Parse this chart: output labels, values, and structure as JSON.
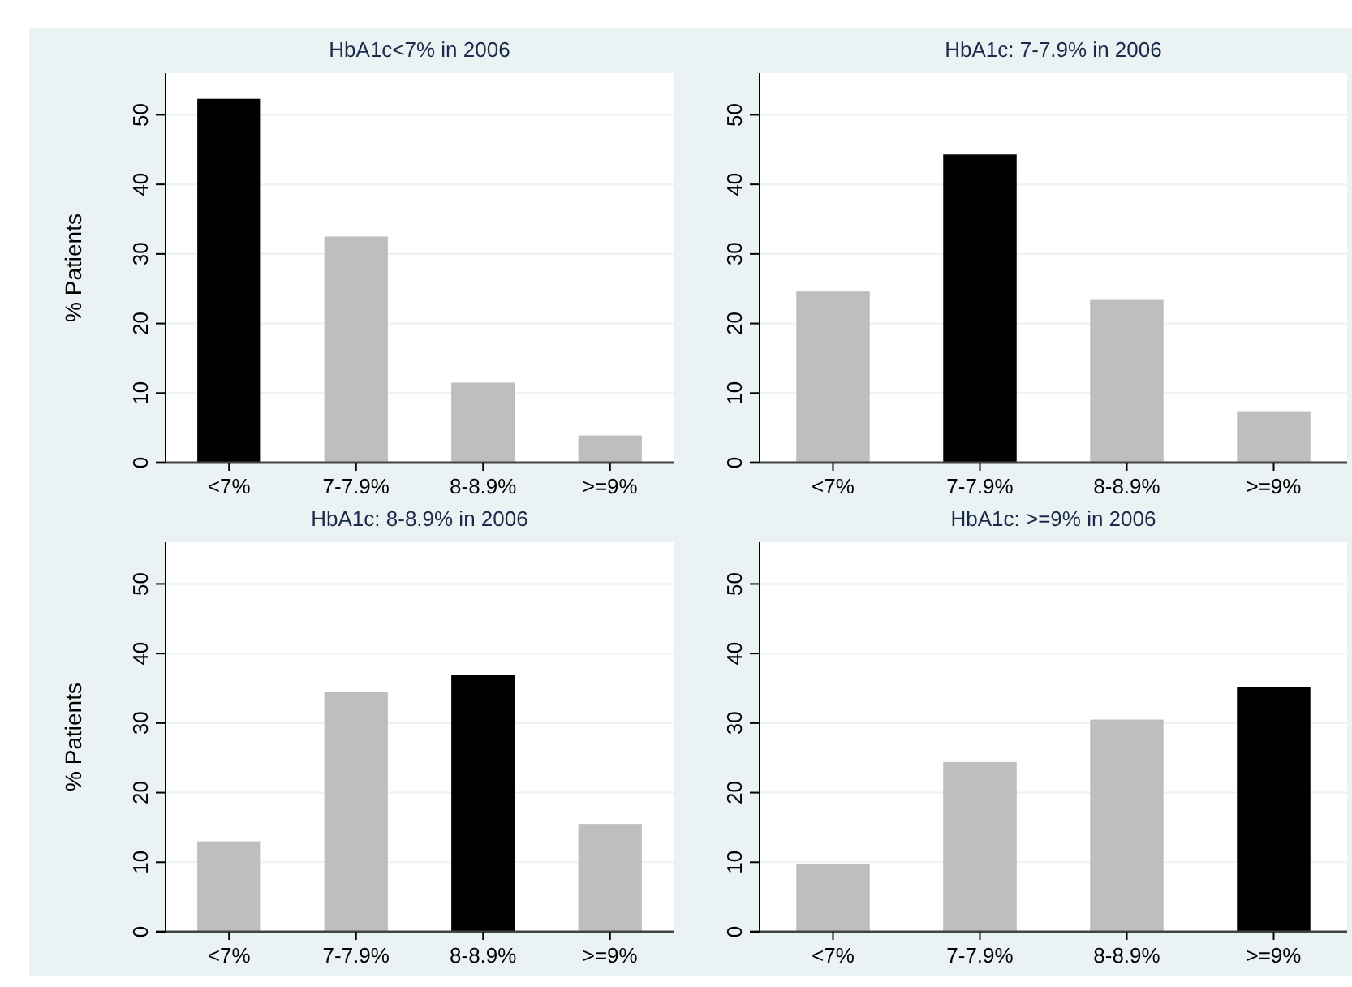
{
  "chart_data": [
    {
      "type": "bar",
      "title": "HbA1c<7% in 2006",
      "ylabel": "% Patients",
      "categories": [
        "<7%",
        "7-7.9%",
        "8-8.9%",
        ">=9%"
      ],
      "values": [
        52.3,
        32.5,
        11.5,
        3.9
      ],
      "colors": [
        "#000000",
        "#bebebe",
        "#bebebe",
        "#bebebe"
      ],
      "ylim": [
        0,
        56
      ],
      "yticks": [
        0,
        10,
        20,
        30,
        40,
        50
      ],
      "grid": "y"
    },
    {
      "type": "bar",
      "title": "HbA1c: 7-7.9% in 2006",
      "categories": [
        "<7%",
        "7-7.9%",
        "8-8.9%",
        ">=9%"
      ],
      "values": [
        24.6,
        44.3,
        23.5,
        7.4
      ],
      "colors": [
        "#bebebe",
        "#000000",
        "#bebebe",
        "#bebebe"
      ],
      "ylim": [
        0,
        56
      ],
      "yticks": [
        0,
        10,
        20,
        30,
        40,
        50
      ],
      "grid": "y"
    },
    {
      "type": "bar",
      "title": "HbA1c: 8-8.9% in 2006",
      "ylabel": "% Patients",
      "categories": [
        "<7%",
        "7-7.9%",
        "8-8.9%",
        ">=9%"
      ],
      "values": [
        13.0,
        34.5,
        36.9,
        15.5
      ],
      "colors": [
        "#bebebe",
        "#bebebe",
        "#000000",
        "#bebebe"
      ],
      "ylim": [
        0,
        56
      ],
      "yticks": [
        0,
        10,
        20,
        30,
        40,
        50
      ],
      "grid": "y"
    },
    {
      "type": "bar",
      "title": "HbA1c: >=9% in 2006",
      "categories": [
        "<7%",
        "7-7.9%",
        "8-8.9%",
        ">=9%"
      ],
      "values": [
        9.7,
        24.4,
        30.5,
        35.2
      ],
      "colors": [
        "#bebebe",
        "#bebebe",
        "#bebebe",
        "#000000"
      ],
      "ylim": [
        0,
        56
      ],
      "yticks": [
        0,
        10,
        20,
        30,
        40,
        50
      ],
      "grid": "y"
    }
  ]
}
